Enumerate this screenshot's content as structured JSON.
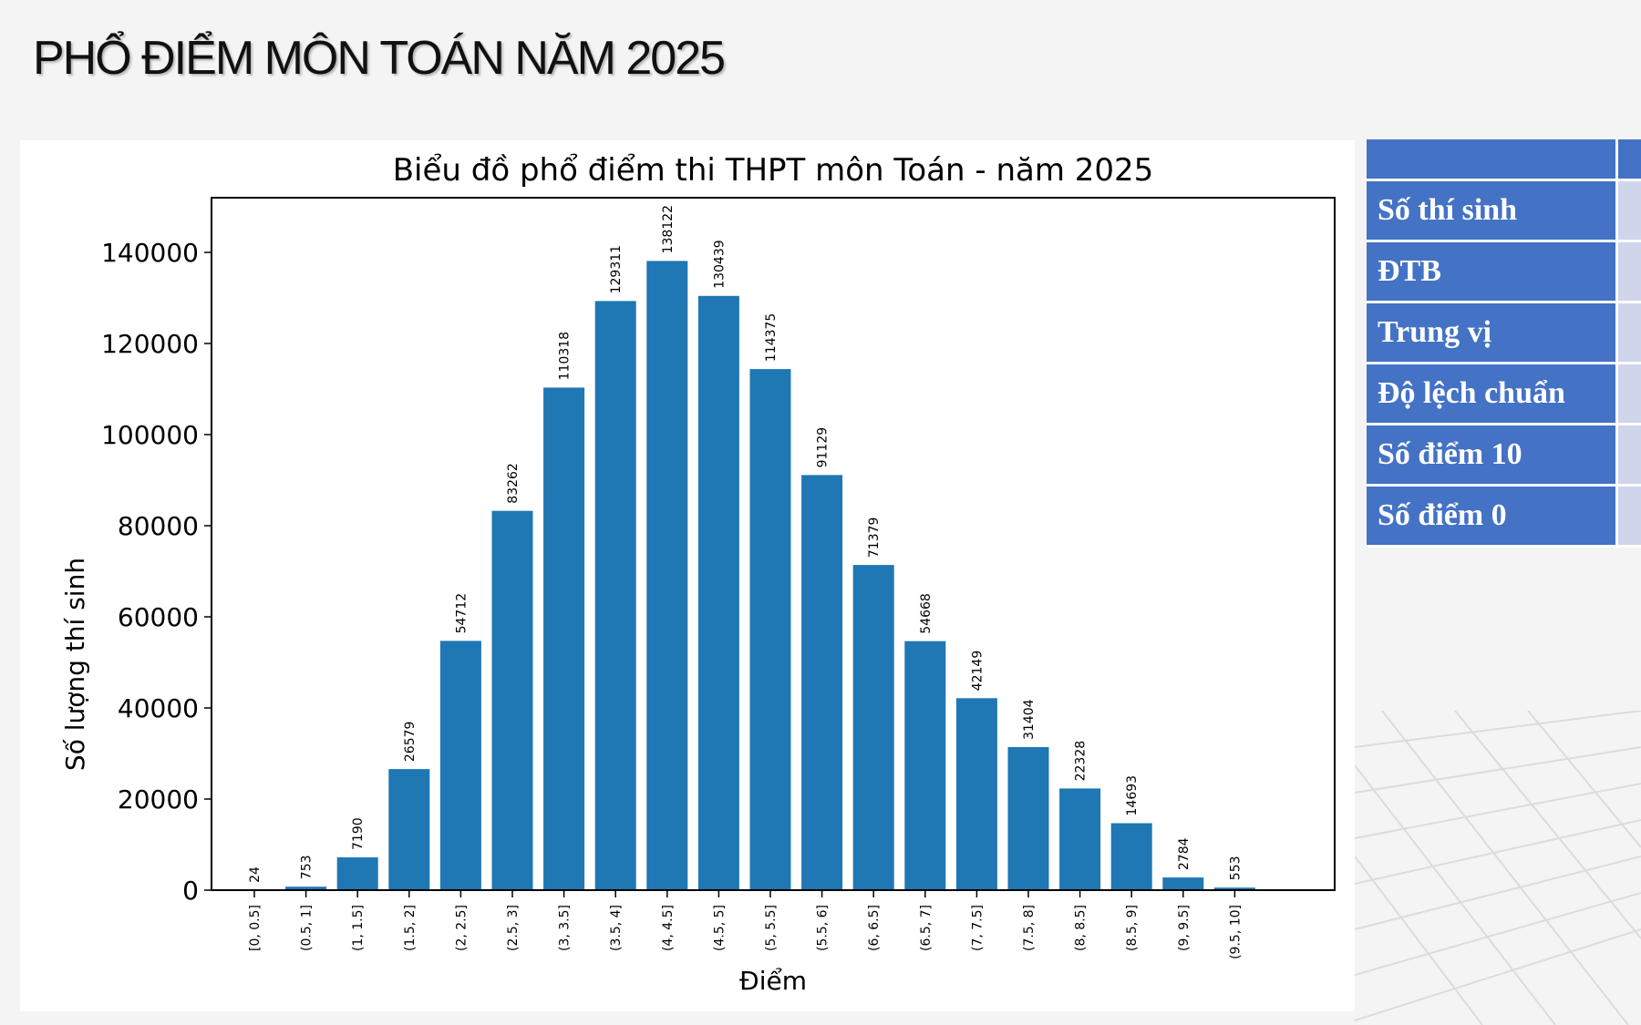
{
  "slide": {
    "title": "PHỔ ĐIỂM MÔN TOÁN NĂM 2025"
  },
  "chart_data": {
    "type": "bar",
    "title": "Biểu đồ phổ điểm thi THPT môn Toán - năm 2025",
    "xlabel": "Điểm",
    "ylabel": "Số lượng thí sinh",
    "categories": [
      "[0, 0.5]",
      "(0.5, 1]",
      "(1, 1.5]",
      "(1.5, 2]",
      "(2, 2.5]",
      "(2.5, 3]",
      "(3, 3.5]",
      "(3.5, 4]",
      "(4, 4.5]",
      "(4.5, 5]",
      "(5, 5.5]",
      "(5.5, 6]",
      "(6, 6.5]",
      "(6.5, 7]",
      "(7, 7.5]",
      "(7.5, 8]",
      "(8, 8.5]",
      "(8.5, 9]",
      "(9, 9.5]",
      "(9.5, 10]"
    ],
    "values": [
      24,
      753,
      7190,
      26579,
      54712,
      83262,
      110318,
      129311,
      138122,
      130439,
      114375,
      91129,
      71379,
      54668,
      42149,
      31404,
      22328,
      14693,
      2784,
      553
    ],
    "yticks": [
      0,
      20000,
      40000,
      60000,
      80000,
      100000,
      120000,
      140000
    ],
    "ylim": [
      0,
      152000
    ],
    "grid": false,
    "bar_color": "#1f77b4"
  },
  "stats_table": {
    "rows": [
      {
        "label": "Số thí sinh"
      },
      {
        "label": "ĐTB"
      },
      {
        "label": "Trung vị"
      },
      {
        "label": "Độ lệch chuẩn"
      },
      {
        "label": "Số điểm 10"
      },
      {
        "label": "Số điểm 0"
      }
    ],
    "header_color": "#4472c4",
    "value_cell_color": "#cfd5ea"
  }
}
